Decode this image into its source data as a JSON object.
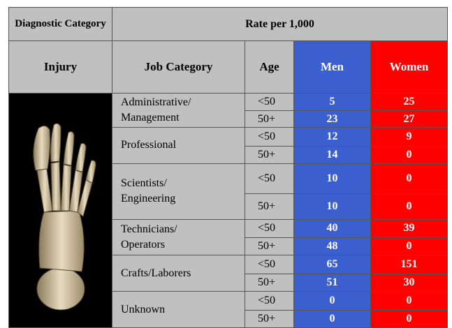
{
  "header": {
    "diagnostic_category": "Diagnostic Category",
    "rate": "Rate per 1,000",
    "injury": "Injury",
    "job_category": "Job Category",
    "age": "Age",
    "men": "Men",
    "women": "Women"
  },
  "groups": [
    {
      "job": "Administrative/\nManagement",
      "rows": [
        {
          "age": "<50",
          "men": 5,
          "women": 25
        },
        {
          "age": "50+",
          "men": 23,
          "women": 27
        }
      ]
    },
    {
      "job": "Professional",
      "rows": [
        {
          "age": "<50",
          "men": 12,
          "women": 9
        },
        {
          "age": "50+",
          "men": 14,
          "women": 0
        }
      ]
    },
    {
      "job": "Scientists/\nEngineering",
      "rows": [
        {
          "age": "<50",
          "men": 10,
          "women": 0
        },
        {
          "age": "50+",
          "men": 10,
          "women": 0
        }
      ]
    },
    {
      "job": "Technicians/\nOperators",
      "rows": [
        {
          "age": "<50",
          "men": 40,
          "women": 39
        },
        {
          "age": "50+",
          "men": 48,
          "women": 0
        }
      ]
    },
    {
      "job": "Crafts/Laborers",
      "rows": [
        {
          "age": "<50",
          "men": 65,
          "women": 151
        },
        {
          "age": "50+",
          "men": 51,
          "women": 30
        }
      ]
    },
    {
      "job": "Unknown",
      "rows": [
        {
          "age": "<50",
          "men": 0,
          "women": 0
        },
        {
          "age": "50+",
          "men": 0,
          "women": 0
        }
      ]
    }
  ]
}
